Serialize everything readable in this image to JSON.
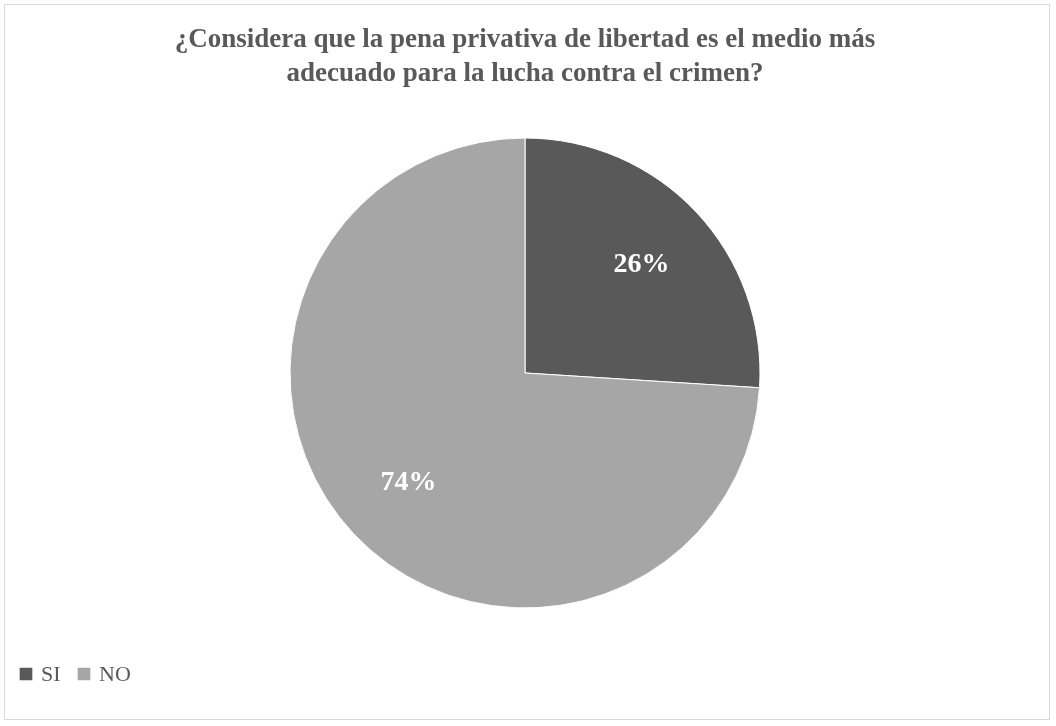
{
  "chart_data": {
    "type": "pie",
    "title": "¿Considera que la pena privativa de libertad es el medio más adecuado para la lucha contra el crimen?",
    "categories": [
      "SI",
      "NO"
    ],
    "values": [
      26,
      74
    ],
    "colors": [
      "#595959",
      "#a6a6a6"
    ],
    "value_labels": [
      "26%",
      "74%"
    ],
    "legend": "bottom"
  }
}
